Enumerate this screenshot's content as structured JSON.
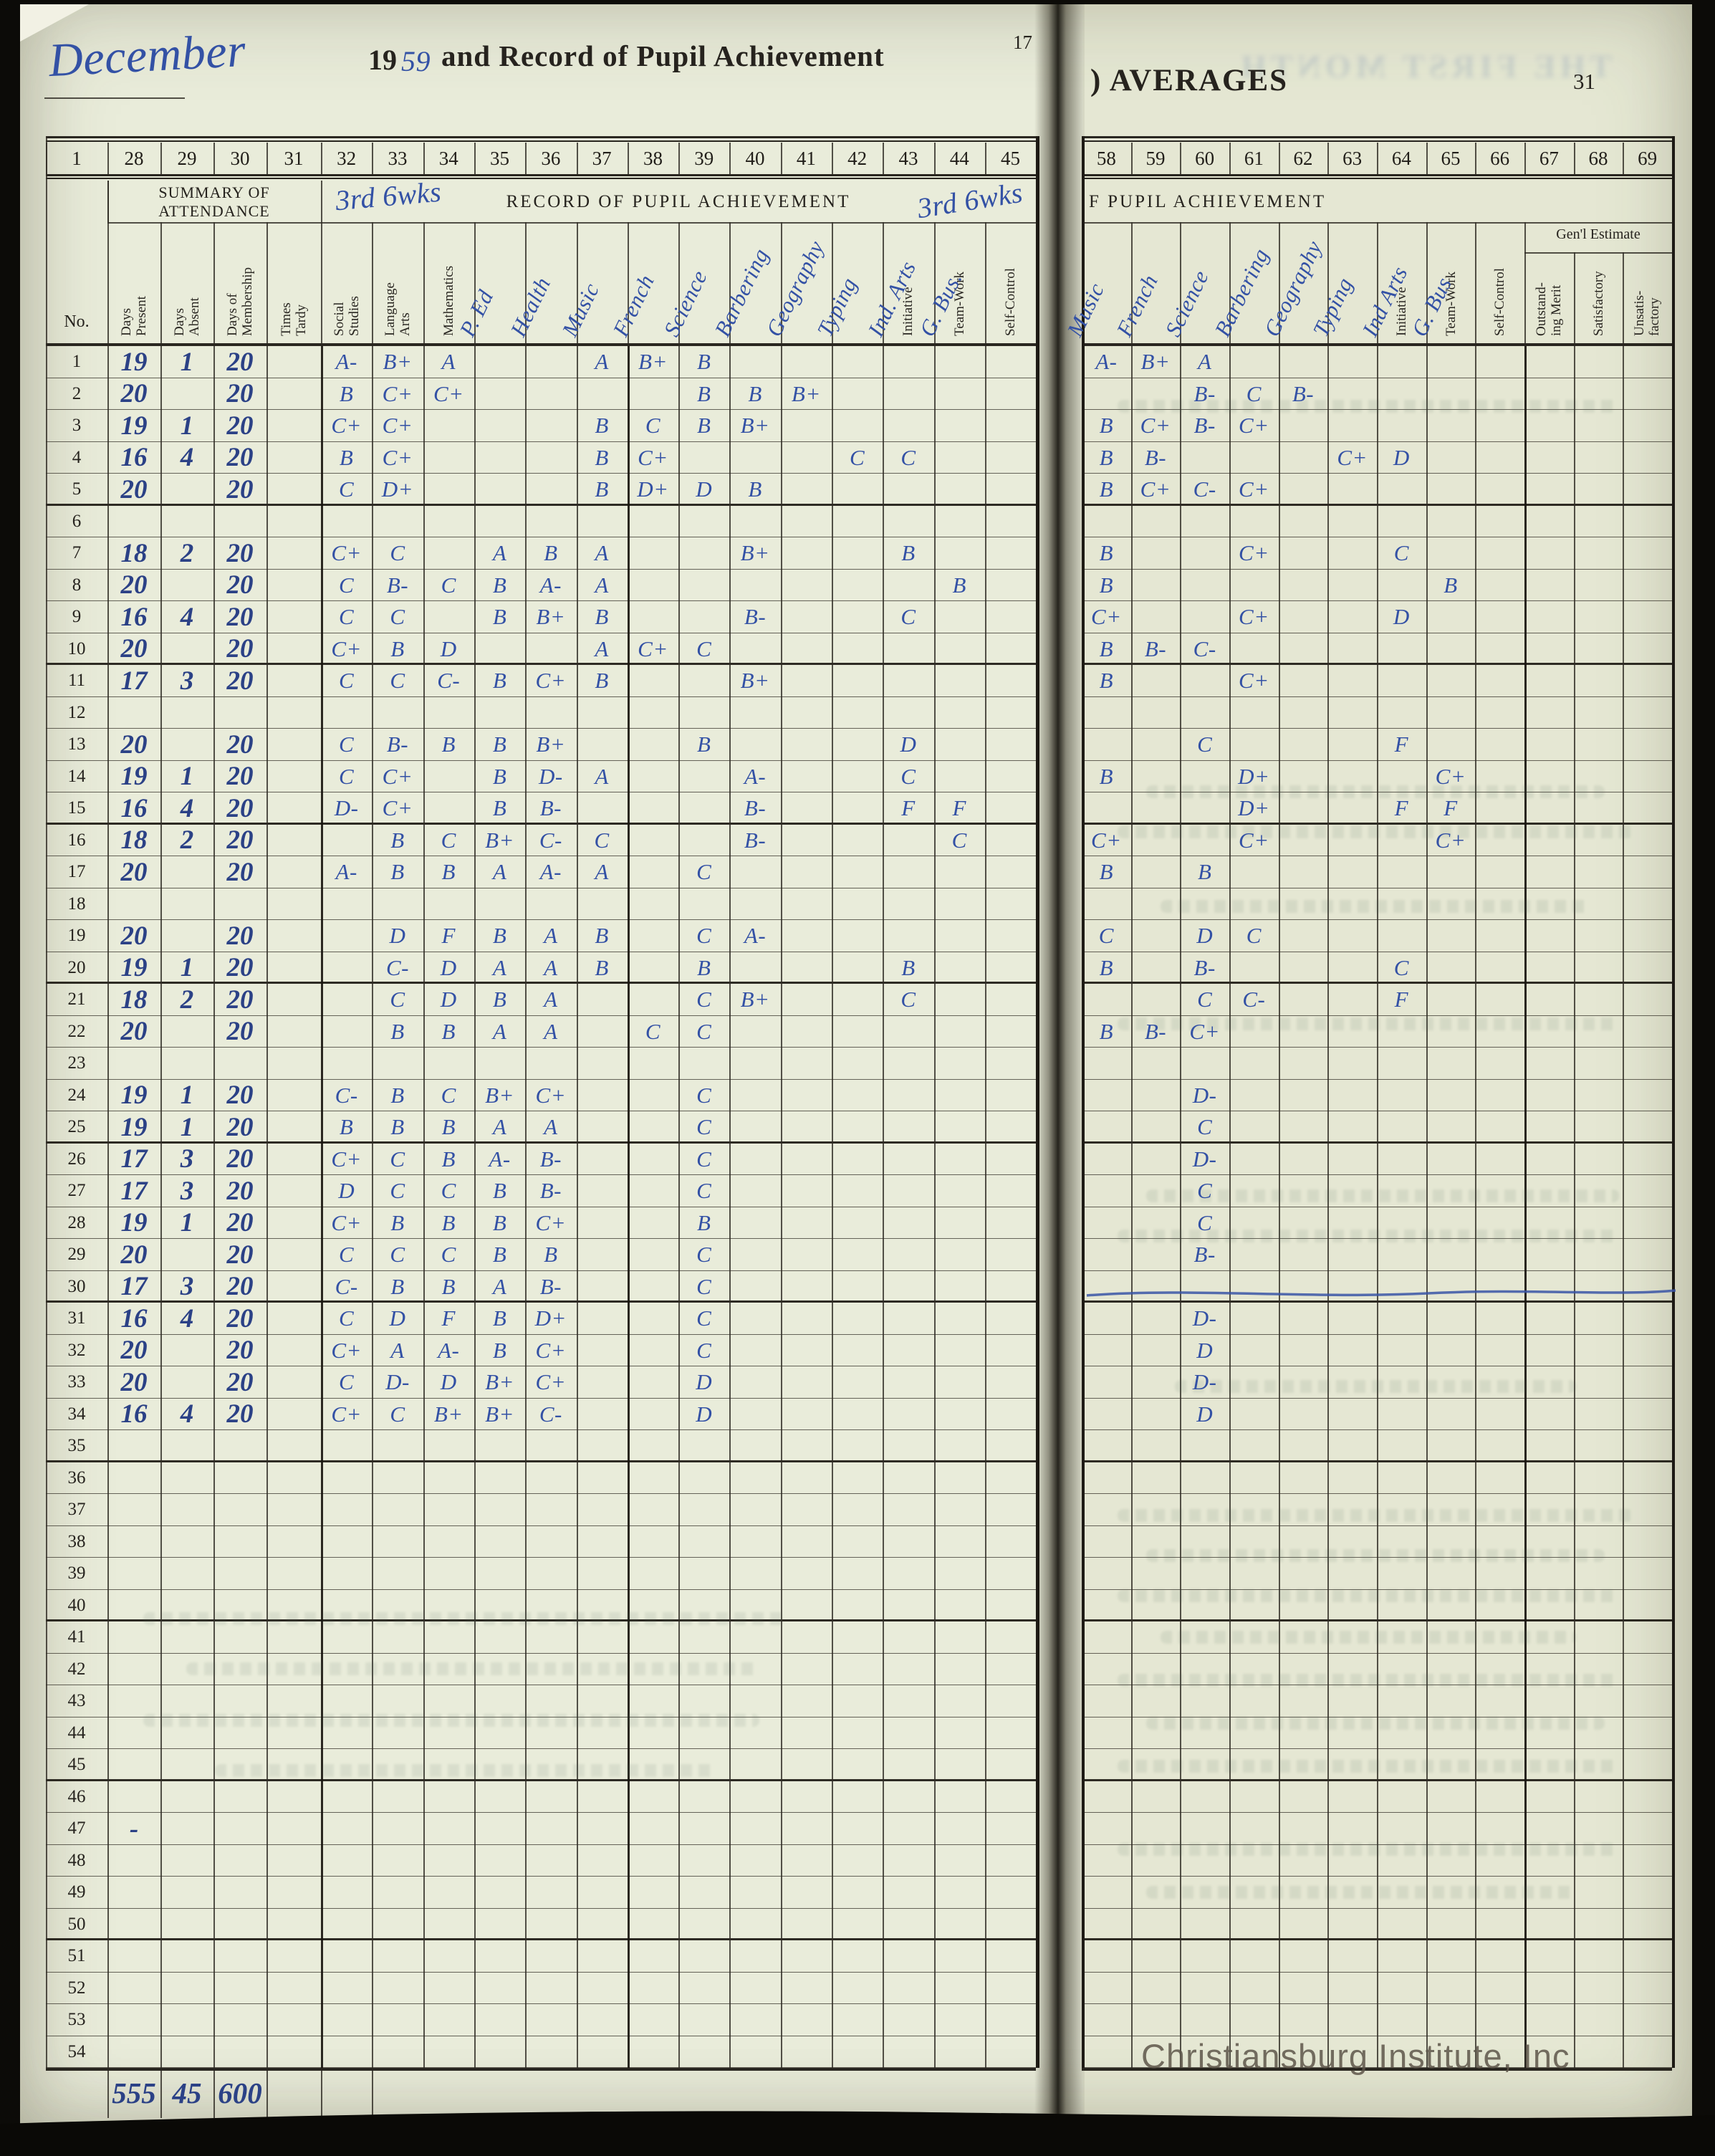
{
  "page": {
    "title_month": "December",
    "title_year_printed": "19",
    "title_year_written": "59",
    "title_rest": "and Record of Pupil Achievement",
    "page_ref_left": "17",
    "right_title": ") AVERAGES",
    "page_number_right": "31",
    "summary_heading": "SUMMARY OF\nATTENDANCE",
    "record_heading": "RECORD OF PUPIL ACHIEVEMENT",
    "record_heading_right_partial": "F PUPIL ACHIEVEMENT",
    "term_note_left": "3rd 6wks",
    "term_note_right": "3rd  6wks",
    "no_header": "No.",
    "genl_estimate_label": "Gen'l Estimate",
    "bleed_text": "THE FIRST MONTH",
    "watermark": "Christiansburg Institute, Inc",
    "totals": {
      "days_present": "555",
      "days_absent": "45",
      "days_of_membership": "600"
    },
    "ink_color": "#3351a5",
    "paper_color": "#e9ecda"
  },
  "columns": {
    "left_no_box": "1",
    "left_numbers": [
      "28",
      "29",
      "30",
      "31",
      "32",
      "33",
      "34",
      "35",
      "36",
      "37",
      "38",
      "39",
      "40",
      "41",
      "42",
      "43",
      "44",
      "45"
    ],
    "right_numbers": [
      "58",
      "59",
      "60",
      "61",
      "62",
      "63",
      "64",
      "65",
      "66",
      "67",
      "68",
      "69"
    ],
    "attendance_headers": [
      {
        "id": "dp",
        "label": "Days\nPresent"
      },
      {
        "id": "da",
        "label": "Days\nAbsent"
      },
      {
        "id": "dm",
        "label": "Days of\nMembership"
      },
      {
        "id": "tt",
        "label": "Times\nTardy"
      }
    ],
    "left_subject_headers": [
      {
        "id": "c32",
        "printed": "Social\nStudies"
      },
      {
        "id": "c33",
        "printed": "Language\nArts"
      },
      {
        "id": "c34",
        "printed": "Mathematics"
      },
      {
        "id": "c35",
        "written": "P. Ed"
      },
      {
        "id": "c36",
        "written": "Health"
      },
      {
        "id": "c37",
        "written": "Music"
      },
      {
        "id": "c38",
        "written": "French"
      },
      {
        "id": "c39",
        "written": "Science"
      },
      {
        "id": "c40",
        "written": "Barbering"
      },
      {
        "id": "c41",
        "written": "Geography"
      },
      {
        "id": "c42",
        "written": "Typing"
      },
      {
        "id": "c43",
        "printed": "Initiative",
        "written": "Ind. Arts"
      },
      {
        "id": "c44",
        "printed": "Team-Work",
        "written": "G. Bus."
      },
      {
        "id": "c45",
        "printed": "Self-Control"
      }
    ],
    "right_subject_headers": [
      {
        "id": "c58",
        "written": "Music"
      },
      {
        "id": "c59",
        "written": "French"
      },
      {
        "id": "c60",
        "written": "Science"
      },
      {
        "id": "c61",
        "written": "Barbering"
      },
      {
        "id": "c62",
        "written": "Geography"
      },
      {
        "id": "c63",
        "written": "Typing"
      },
      {
        "id": "c64",
        "printed": "Initiative",
        "written": "Ind Arts"
      },
      {
        "id": "c65",
        "printed": "Team-Work",
        "written": "G. Bus"
      },
      {
        "id": "c66",
        "printed": "Self-Control"
      },
      {
        "id": "c67",
        "printed": "Outstand-\ning Merit",
        "group": "genl"
      },
      {
        "id": "c68",
        "printed": "Satisfactory",
        "group": "genl"
      },
      {
        "id": "c69",
        "printed": "Unsatis-\nfactory",
        "group": "genl"
      }
    ]
  },
  "rows": [
    {
      "no": "1",
      "dp": "19",
      "da": "1",
      "dm": "20",
      "L": {
        "c32": "A-",
        "c33": "B+",
        "c34": "A",
        "c37": "A",
        "c38": "B+",
        "c39": "B"
      },
      "R": {
        "c58": "A-",
        "c59": "B+",
        "c60": "A"
      }
    },
    {
      "no": "2",
      "dp": "20",
      "dm": "20",
      "L": {
        "c32": "B",
        "c33": "C+",
        "c34": "C+",
        "c39": "B",
        "c40": "B",
        "c41": "B+"
      },
      "R": {
        "c60": "B-",
        "c61": "C",
        "c62": "B-"
      }
    },
    {
      "no": "3",
      "dp": "19",
      "da": "1",
      "dm": "20",
      "L": {
        "c32": "C+",
        "c33": "C+",
        "c37": "B",
        "c38": "C",
        "c39": "B",
        "c40": "B+"
      },
      "R": {
        "c58": "B",
        "c59": "C+",
        "c60": "B-",
        "c61": "C+"
      }
    },
    {
      "no": "4",
      "dp": "16",
      "da": "4",
      "dm": "20",
      "L": {
        "c32": "B",
        "c33": "C+",
        "c37": "B",
        "c38": "C+",
        "c42": "C",
        "c43": "C"
      },
      "R": {
        "c58": "B",
        "c59": "B-",
        "c63": "C+",
        "c64": "D"
      }
    },
    {
      "no": "5",
      "dp": "20",
      "dm": "20",
      "L": {
        "c32": "C",
        "c33": "D+",
        "c37": "B",
        "c38": "D+",
        "c39": "D",
        "c40": "B"
      },
      "R": {
        "c58": "B",
        "c59": "C+",
        "c60": "C-",
        "c61": "C+"
      }
    },
    {
      "no": "6"
    },
    {
      "no": "7",
      "dp": "18",
      "da": "2",
      "dm": "20",
      "L": {
        "c32": "C+",
        "c33": "C",
        "c35": "A",
        "c36": "B",
        "c37": "A",
        "c40": "B+",
        "c43": "B"
      },
      "R": {
        "c58": "B",
        "c61": "C+",
        "c64": "C"
      }
    },
    {
      "no": "8",
      "dp": "20",
      "dm": "20",
      "L": {
        "c32": "C",
        "c33": "B-",
        "c34": "C",
        "c35": "B",
        "c36": "A-",
        "c37": "A",
        "c44": "B"
      },
      "R": {
        "c58": "B",
        "c65": "B"
      }
    },
    {
      "no": "9",
      "dp": "16",
      "da": "4",
      "dm": "20",
      "L": {
        "c32": "C",
        "c33": "C",
        "c35": "B",
        "c36": "B+",
        "c37": "B",
        "c40": "B-",
        "c43": "C"
      },
      "R": {
        "c58": "C+",
        "c61": "C+",
        "c64": "D"
      }
    },
    {
      "no": "10",
      "dp": "20",
      "dm": "20",
      "L": {
        "c32": "C+",
        "c33": "B",
        "c34": "D",
        "c37": "A",
        "c38": "C+",
        "c39": "C"
      },
      "R": {
        "c58": "B",
        "c59": "B-",
        "c60": "C-"
      }
    },
    {
      "no": "11",
      "dp": "17",
      "da": "3",
      "dm": "20",
      "L": {
        "c32": "C",
        "c33": "C",
        "c34": "C-",
        "c35": "B",
        "c36": "C+",
        "c37": "B",
        "c40": "B+"
      },
      "R": {
        "c58": "B",
        "c61": "C+"
      }
    },
    {
      "no": "12"
    },
    {
      "no": "13",
      "dp": "20",
      "dm": "20",
      "L": {
        "c32": "C",
        "c33": "B-",
        "c34": "B",
        "c35": "B",
        "c36": "B+",
        "c39": "B",
        "c43": "D"
      },
      "R": {
        "c60": "C",
        "c64": "F"
      }
    },
    {
      "no": "14",
      "dp": "19",
      "da": "1",
      "dm": "20",
      "L": {
        "c32": "C",
        "c33": "C+",
        "c35": "B",
        "c36": "D-",
        "c37": "A",
        "c40": "A-",
        "c43": "C"
      },
      "R": {
        "c58": "B",
        "c61": "D+",
        "c65": "C+"
      }
    },
    {
      "no": "15",
      "dp": "16",
      "da": "4",
      "dm": "20",
      "L": {
        "c32": "D-",
        "c33": "C+",
        "c35": "B",
        "c36": "B-",
        "c40": "B-",
        "c43": "F",
        "c44": "F"
      },
      "R": {
        "c61": "D+",
        "c64": "F",
        "c65": "F"
      }
    },
    {
      "no": "16",
      "dp": "18",
      "da": "2",
      "dm": "20",
      "L": {
        "c33": "B",
        "c34": "C",
        "c35": "B+",
        "c36": "C-",
        "c37": "C",
        "c40": "B-",
        "c44": "C"
      },
      "R": {
        "c58": "C+",
        "c61": "C+",
        "c65": "C+"
      }
    },
    {
      "no": "17",
      "dp": "20",
      "dm": "20",
      "L": {
        "c32": "A-",
        "c33": "B",
        "c34": "B",
        "c35": "A",
        "c36": "A-",
        "c37": "A",
        "c39": "C"
      },
      "R": {
        "c58": "B",
        "c60": "B"
      }
    },
    {
      "no": "18"
    },
    {
      "no": "19",
      "dp": "20",
      "dm": "20",
      "L": {
        "c33": "D",
        "c34": "F",
        "c35": "B",
        "c36": "A",
        "c37": "B",
        "c39": "C",
        "c40": "A-"
      },
      "R": {
        "c58": "C",
        "c60": "D",
        "c61": "C"
      }
    },
    {
      "no": "20",
      "dp": "19",
      "da": "1",
      "dm": "20",
      "L": {
        "c33": "C-",
        "c34": "D",
        "c35": "A",
        "c36": "A",
        "c37": "B",
        "c39": "B",
        "c43": "B"
      },
      "R": {
        "c58": "B",
        "c60": "B-",
        "c64": "C"
      }
    },
    {
      "no": "21",
      "dp": "18",
      "da": "2",
      "dm": "20",
      "L": {
        "c33": "C",
        "c34": "D",
        "c35": "B",
        "c36": "A",
        "c39": "C",
        "c40": "B+",
        "c43": "C"
      },
      "R": {
        "c60": "C",
        "c61": "C-",
        "c64": "F"
      }
    },
    {
      "no": "22",
      "dp": "20",
      "dm": "20",
      "L": {
        "c33": "B",
        "c34": "B",
        "c35": "A",
        "c36": "A",
        "c38": "C",
        "c39": "C"
      },
      "R": {
        "c58": "B",
        "c59": "B-",
        "c60": "C+"
      }
    },
    {
      "no": "23"
    },
    {
      "no": "24",
      "dp": "19",
      "da": "1",
      "dm": "20",
      "L": {
        "c32": "C-",
        "c33": "B",
        "c34": "C",
        "c35": "B+",
        "c36": "C+",
        "c39": "C"
      },
      "R": {
        "c60": "D-"
      }
    },
    {
      "no": "25",
      "dp": "19",
      "da": "1",
      "dm": "20",
      "L": {
        "c32": "B",
        "c33": "B",
        "c34": "B",
        "c35": "A",
        "c36": "A",
        "c39": "C"
      },
      "R": {
        "c60": "C"
      }
    },
    {
      "no": "26",
      "dp": "17",
      "da": "3",
      "dm": "20",
      "L": {
        "c32": "C+",
        "c33": "C",
        "c34": "B",
        "c35": "A-",
        "c36": "B-",
        "c39": "C"
      },
      "R": {
        "c60": "D-"
      }
    },
    {
      "no": "27",
      "dp": "17",
      "da": "3",
      "dm": "20",
      "L": {
        "c32": "D",
        "c33": "C",
        "c34": "C",
        "c35": "B",
        "c36": "B-",
        "c39": "C"
      },
      "R": {
        "c60": "C"
      }
    },
    {
      "no": "28",
      "dp": "19",
      "da": "1",
      "dm": "20",
      "L": {
        "c32": "C+",
        "c33": "B",
        "c34": "B",
        "c35": "B",
        "c36": "C+",
        "c39": "B"
      },
      "R": {
        "c60": "C"
      }
    },
    {
      "no": "29",
      "dp": "20",
      "dm": "20",
      "L": {
        "c32": "C",
        "c33": "C",
        "c34": "C",
        "c35": "B",
        "c36": "B",
        "c39": "C"
      },
      "R": {
        "c60": "B-"
      }
    },
    {
      "no": "30",
      "dp": "17",
      "da": "3",
      "dm": "20",
      "L": {
        "c32": "C-",
        "c33": "B",
        "c34": "B",
        "c35": "A",
        "c36": "B-",
        "c39": "C"
      }
    },
    {
      "no": "31",
      "dp": "16",
      "da": "4",
      "dm": "20",
      "L": {
        "c32": "C",
        "c33": "D",
        "c34": "F",
        "c35": "B",
        "c36": "D+",
        "c39": "C"
      },
      "R": {
        "c60": "D-"
      }
    },
    {
      "no": "32",
      "dp": "20",
      "dm": "20",
      "L": {
        "c32": "C+",
        "c33": "A",
        "c34": "A-",
        "c35": "B",
        "c36": "C+",
        "c39": "C"
      },
      "R": {
        "c60": "D"
      }
    },
    {
      "no": "33",
      "dp": "20",
      "dm": "20",
      "L": {
        "c32": "C",
        "c33": "D-",
        "c34": "D",
        "c35": "B+",
        "c36": "C+",
        "c39": "D"
      },
      "R": {
        "c60": "D-"
      }
    },
    {
      "no": "34",
      "dp": "16",
      "da": "4",
      "dm": "20",
      "L": {
        "c32": "C+",
        "c33": "C",
        "c34": "B+",
        "c35": "B+",
        "c36": "C-",
        "c39": "D"
      },
      "R": {
        "c60": "D"
      }
    },
    {
      "no": "35"
    },
    {
      "no": "36"
    },
    {
      "no": "37"
    },
    {
      "no": "38"
    },
    {
      "no": "39"
    },
    {
      "no": "40"
    },
    {
      "no": "41"
    },
    {
      "no": "42"
    },
    {
      "no": "43"
    },
    {
      "no": "44"
    },
    {
      "no": "45"
    },
    {
      "no": "46"
    },
    {
      "no": "47",
      "dp": "-"
    },
    {
      "no": "48"
    },
    {
      "no": "49"
    },
    {
      "no": "50"
    },
    {
      "no": "51"
    },
    {
      "no": "52"
    },
    {
      "no": "53"
    },
    {
      "no": "54"
    }
  ]
}
